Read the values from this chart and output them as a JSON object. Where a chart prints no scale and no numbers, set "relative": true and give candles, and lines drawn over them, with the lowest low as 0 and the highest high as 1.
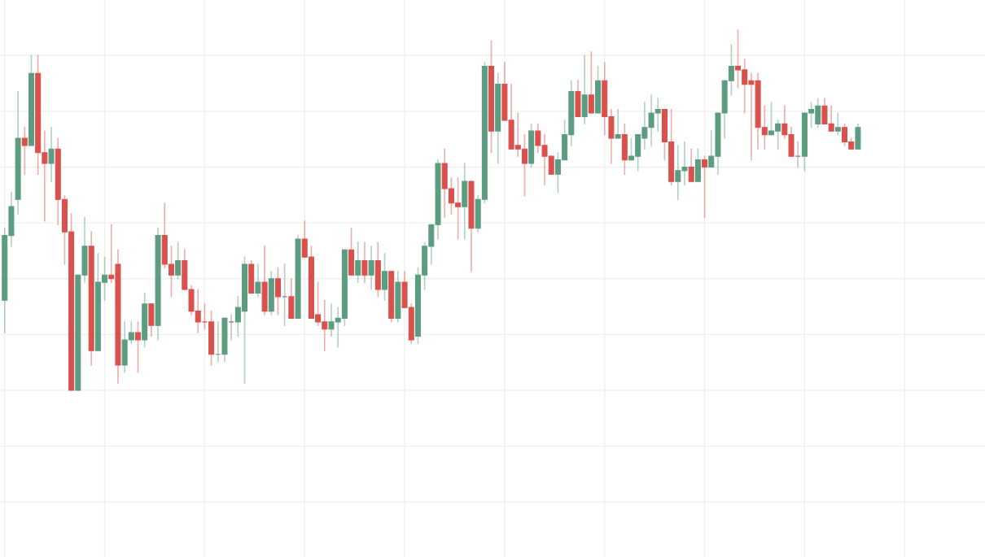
{
  "chart_data": {
    "type": "candlestick",
    "relative": true,
    "grid": true,
    "categories": [
      null,
      null,
      null,
      null,
      null,
      null,
      null,
      null,
      null,
      null,
      null,
      null,
      null,
      null,
      null,
      null,
      null,
      null,
      null,
      null,
      null,
      null,
      null,
      null,
      null,
      null,
      null,
      null,
      null,
      null,
      null,
      null,
      null,
      null,
      null,
      null,
      null,
      null,
      null,
      null,
      null,
      null,
      null,
      null,
      null,
      null,
      null,
      null,
      null,
      null,
      null,
      null,
      null,
      null,
      null,
      null,
      null,
      null,
      null,
      null,
      null,
      null,
      null,
      null,
      null,
      null,
      null,
      null,
      null,
      null,
      null,
      null,
      null,
      null,
      null,
      null,
      null,
      null,
      null,
      null,
      null,
      null,
      null,
      null,
      null,
      null,
      null,
      null,
      null,
      null,
      null,
      null,
      null,
      null,
      null,
      null,
      null,
      null,
      null,
      null,
      null,
      null,
      null,
      null,
      null,
      null,
      null,
      null,
      null,
      null,
      null,
      null,
      null,
      null,
      null,
      null,
      null,
      null,
      null,
      null,
      null,
      null,
      null,
      null,
      null,
      null,
      null,
      null,
      null
    ],
    "ohlc": [
      [
        0.25,
        0.45,
        0.16,
        0.43
      ],
      [
        0.43,
        0.55,
        0.4,
        0.51
      ],
      [
        0.53,
        0.83,
        0.49,
        0.7
      ],
      [
        0.7,
        0.73,
        0.6,
        0.68
      ],
      [
        0.68,
        0.93,
        0.68,
        0.88
      ],
      [
        0.88,
        0.93,
        0.6,
        0.66
      ],
      [
        0.66,
        0.72,
        0.47,
        0.63
      ],
      [
        0.63,
        0.73,
        0.58,
        0.67
      ],
      [
        0.67,
        0.7,
        0.46,
        0.53
      ],
      [
        0.53,
        0.54,
        0.35,
        0.44
      ],
      [
        0.44,
        0.49,
        0.0,
        0.0
      ],
      [
        0.0,
        0.32,
        0.0,
        0.32
      ],
      [
        0.32,
        0.48,
        0.3,
        0.4
      ],
      [
        0.4,
        0.44,
        0.07,
        0.11
      ],
      [
        0.11,
        0.38,
        0.11,
        0.3
      ],
      [
        0.3,
        0.37,
        0.25,
        0.32
      ],
      [
        0.32,
        0.46,
        0.3,
        0.31
      ],
      [
        0.35,
        0.39,
        0.02,
        0.07
      ],
      [
        0.07,
        0.19,
        0.05,
        0.14
      ],
      [
        0.14,
        0.19,
        0.13,
        0.16
      ],
      [
        0.16,
        0.19,
        0.05,
        0.14
      ],
      [
        0.14,
        0.27,
        0.12,
        0.24
      ],
      [
        0.24,
        0.24,
        0.15,
        0.18
      ],
      [
        0.18,
        0.45,
        0.14,
        0.43
      ],
      [
        0.43,
        0.52,
        0.34,
        0.35
      ],
      [
        0.35,
        0.4,
        0.26,
        0.32
      ],
      [
        0.32,
        0.41,
        0.31,
        0.36
      ],
      [
        0.36,
        0.39,
        0.28,
        0.28
      ],
      [
        0.28,
        0.29,
        0.21,
        0.22
      ],
      [
        0.22,
        0.28,
        0.16,
        0.19
      ],
      [
        0.19,
        0.24,
        0.17,
        0.19
      ],
      [
        0.19,
        0.22,
        0.07,
        0.1
      ],
      [
        0.1,
        0.19,
        0.08,
        0.1
      ],
      [
        0.1,
        0.2,
        0.08,
        0.2
      ],
      [
        0.19,
        0.21,
        0.14,
        0.19
      ],
      [
        0.19,
        0.26,
        0.15,
        0.23
      ],
      [
        0.22,
        0.37,
        0.02,
        0.35
      ],
      [
        0.35,
        0.36,
        0.27,
        0.27
      ],
      [
        0.27,
        0.35,
        0.26,
        0.3
      ],
      [
        0.3,
        0.4,
        0.21,
        0.22
      ],
      [
        0.22,
        0.33,
        0.21,
        0.31
      ],
      [
        0.31,
        0.34,
        0.21,
        0.26
      ],
      [
        0.26,
        0.35,
        0.18,
        0.26
      ],
      [
        0.26,
        0.31,
        0.2,
        0.2
      ],
      [
        0.2,
        0.43,
        0.2,
        0.42
      ],
      [
        0.42,
        0.47,
        0.37,
        0.37
      ],
      [
        0.37,
        0.4,
        0.2,
        0.2
      ],
      [
        0.21,
        0.3,
        0.18,
        0.19
      ],
      [
        0.19,
        0.25,
        0.11,
        0.17
      ],
      [
        0.17,
        0.24,
        0.15,
        0.19
      ],
      [
        0.19,
        0.23,
        0.12,
        0.2
      ],
      [
        0.2,
        0.39,
        0.18,
        0.39
      ],
      [
        0.39,
        0.45,
        0.32,
        0.32
      ],
      [
        0.32,
        0.41,
        0.3,
        0.36
      ],
      [
        0.36,
        0.41,
        0.3,
        0.32
      ],
      [
        0.32,
        0.4,
        0.28,
        0.36
      ],
      [
        0.36,
        0.41,
        0.26,
        0.28
      ],
      [
        0.28,
        0.38,
        0.25,
        0.33
      ],
      [
        0.33,
        0.33,
        0.19,
        0.2
      ],
      [
        0.2,
        0.33,
        0.19,
        0.3
      ],
      [
        0.3,
        0.33,
        0.23,
        0.23
      ],
      [
        0.23,
        0.24,
        0.13,
        0.14
      ],
      [
        0.15,
        0.34,
        0.13,
        0.32
      ],
      [
        0.32,
        0.41,
        0.28,
        0.4
      ],
      [
        0.4,
        0.46,
        0.35,
        0.46
      ],
      [
        0.46,
        0.64,
        0.42,
        0.63
      ],
      [
        0.63,
        0.67,
        0.48,
        0.56
      ],
      [
        0.56,
        0.59,
        0.49,
        0.52
      ],
      [
        0.52,
        0.59,
        0.42,
        0.51
      ],
      [
        0.51,
        0.63,
        0.42,
        0.58
      ],
      [
        0.58,
        0.58,
        0.33,
        0.45
      ],
      [
        0.45,
        0.54,
        0.44,
        0.53
      ],
      [
        0.53,
        0.91,
        0.52,
        0.9
      ],
      [
        0.9,
        0.97,
        0.66,
        0.72
      ],
      [
        0.72,
        0.88,
        0.63,
        0.85
      ],
      [
        0.85,
        0.91,
        0.75,
        0.75
      ],
      [
        0.75,
        0.85,
        0.67,
        0.67
      ],
      [
        0.68,
        0.77,
        0.65,
        0.67
      ],
      [
        0.67,
        0.71,
        0.54,
        0.63
      ],
      [
        0.63,
        0.74,
        0.62,
        0.72
      ],
      [
        0.72,
        0.74,
        0.66,
        0.68
      ],
      [
        0.68,
        0.71,
        0.57,
        0.65
      ],
      [
        0.65,
        0.65,
        0.6,
        0.6
      ],
      [
        0.6,
        0.66,
        0.55,
        0.64
      ],
      [
        0.64,
        0.75,
        0.64,
        0.71
      ],
      [
        0.71,
        0.86,
        0.68,
        0.83
      ],
      [
        0.83,
        0.86,
        0.76,
        0.76
      ],
      [
        0.76,
        0.93,
        0.74,
        0.82
      ],
      [
        0.82,
        0.94,
        0.77,
        0.77
      ],
      [
        0.77,
        0.9,
        0.77,
        0.86
      ],
      [
        0.86,
        0.91,
        0.71,
        0.76
      ],
      [
        0.76,
        0.78,
        0.63,
        0.7
      ],
      [
        0.7,
        0.78,
        0.7,
        0.71
      ],
      [
        0.71,
        0.74,
        0.6,
        0.64
      ],
      [
        0.64,
        0.7,
        0.64,
        0.65
      ],
      [
        0.65,
        0.71,
        0.61,
        0.71
      ],
      [
        0.7,
        0.8,
        0.67,
        0.73
      ],
      [
        0.73,
        0.82,
        0.68,
        0.77
      ],
      [
        0.77,
        0.81,
        0.72,
        0.78
      ],
      [
        0.78,
        0.78,
        0.64,
        0.69
      ],
      [
        0.69,
        0.78,
        0.57,
        0.58
      ],
      [
        0.58,
        0.68,
        0.53,
        0.61
      ],
      [
        0.61,
        0.69,
        0.57,
        0.62
      ],
      [
        0.62,
        0.67,
        0.58,
        0.58
      ],
      [
        0.58,
        0.67,
        0.58,
        0.64
      ],
      [
        0.64,
        0.65,
        0.48,
        0.62
      ],
      [
        0.62,
        0.72,
        0.62,
        0.65
      ],
      [
        0.65,
        0.77,
        0.6,
        0.77
      ],
      [
        0.77,
        0.86,
        0.7,
        0.86
      ],
      [
        0.86,
        0.96,
        0.82,
        0.9
      ],
      [
        0.9,
        1.0,
        0.84,
        0.89
      ],
      [
        0.89,
        0.92,
        0.77,
        0.85
      ],
      [
        0.86,
        0.88,
        0.64,
        0.85
      ],
      [
        0.86,
        0.88,
        0.67,
        0.73
      ],
      [
        0.73,
        0.79,
        0.67,
        0.71
      ],
      [
        0.71,
        0.8,
        0.71,
        0.72
      ],
      [
        0.72,
        0.75,
        0.67,
        0.74
      ],
      [
        0.74,
        0.79,
        0.7,
        0.71
      ],
      [
        0.71,
        0.73,
        0.65,
        0.65
      ],
      [
        0.65,
        0.69,
        0.62,
        0.65
      ],
      [
        0.65,
        0.77,
        0.61,
        0.77
      ],
      [
        0.77,
        0.8,
        0.73,
        0.78
      ],
      [
        0.74,
        0.81,
        0.73,
        0.79
      ],
      [
        0.79,
        0.81,
        0.74,
        0.74
      ],
      [
        0.74,
        0.79,
        0.72,
        0.72
      ],
      [
        0.72,
        0.77,
        0.71,
        0.73
      ],
      [
        0.73,
        0.74,
        0.68,
        0.69
      ],
      [
        0.69,
        0.7,
        0.67,
        0.67
      ],
      [
        0.67,
        0.74,
        0.67,
        0.73
      ]
    ],
    "colors": [
      "#5c9c80",
      "#5c9c80",
      "#5c9c80",
      "#d9504c",
      "#5c9c80",
      "#d9504c",
      "#d9504c",
      "#5c9c80",
      "#d9504c",
      "#d9504c",
      "#d9504c",
      "#5c9c80",
      "#5c9c80",
      "#d9504c",
      "#5c9c80",
      "#5c9c80",
      "#d9504c",
      "#d9504c",
      "#5c9c80",
      "#5c9c80",
      "#d9504c",
      "#5c9c80",
      "#d9504c",
      "#5c9c80",
      "#d9504c",
      "#d9504c",
      "#5c9c80",
      "#d9504c",
      "#d9504c",
      "#d9504c",
      "#d9504c",
      "#d9504c",
      "#808080",
      "#5c9c80",
      "#808080",
      "#5c9c80",
      "#5c9c80",
      "#d9504c",
      "#5c9c80",
      "#d9504c",
      "#5c9c80",
      "#d9504c",
      "#808080",
      "#d9504c",
      "#5c9c80",
      "#d9504c",
      "#d9504c",
      "#d9504c",
      "#d9504c",
      "#5c9c80",
      "#5c9c80",
      "#5c9c80",
      "#d9504c",
      "#5c9c80",
      "#d9504c",
      "#5c9c80",
      "#d9504c",
      "#5c9c80",
      "#d9504c",
      "#5c9c80",
      "#d9504c",
      "#d9504c",
      "#5c9c80",
      "#5c9c80",
      "#5c9c80",
      "#5c9c80",
      "#d9504c",
      "#d9504c",
      "#d9504c",
      "#5c9c80",
      "#d9504c",
      "#5c9c80",
      "#5c9c80",
      "#d9504c",
      "#5c9c80",
      "#d9504c",
      "#d9504c",
      "#d9504c",
      "#d9504c",
      "#5c9c80",
      "#d9504c",
      "#d9504c",
      "#d9504c",
      "#5c9c80",
      "#5c9c80",
      "#5c9c80",
      "#d9504c",
      "#5c9c80",
      "#d9504c",
      "#5c9c80",
      "#d9504c",
      "#d9504c",
      "#5c9c80",
      "#d9504c",
      "#5c9c80",
      "#5c9c80",
      "#5c9c80",
      "#5c9c80",
      "#5c9c80",
      "#d9504c",
      "#d9504c",
      "#5c9c80",
      "#5c9c80",
      "#d9504c",
      "#5c9c80",
      "#d9504c",
      "#5c9c80",
      "#5c9c80",
      "#5c9c80",
      "#5c9c80",
      "#d9504c",
      "#d9504c",
      "#d9504c",
      "#d9504c",
      "#d9504c",
      "#5c9c80",
      "#5c9c80",
      "#d9504c",
      "#d9504c",
      "#808080",
      "#5c9c80",
      "#5c9c80",
      "#5c9c80",
      "#d9504c",
      "#d9504c",
      "#5c9c80",
      "#d9504c",
      "#d9504c",
      "#5c9c80"
    ]
  }
}
